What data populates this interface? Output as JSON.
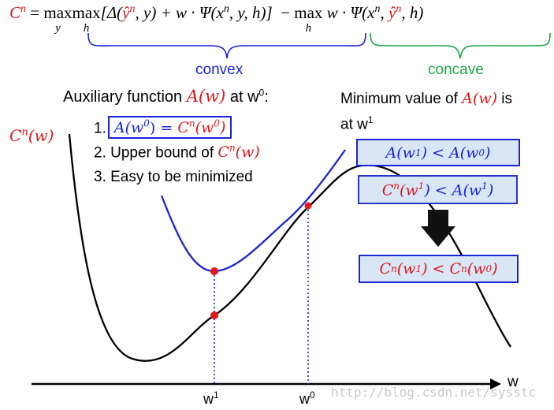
{
  "equation": {
    "lhs": "C",
    "lhs_sup": "n",
    "eq": "=",
    "max1": "max",
    "max1_sub": "y",
    "max2": "max",
    "max2_sub": "h",
    "term1": "[Δ(",
    "yhat": "ŷ",
    "yhat_sup": "n",
    "term1b": ", y) + w · Ψ(x",
    "x_sup": "n",
    "term1c": ", y, h)]",
    "minus": "−",
    "max3": "max",
    "max3_sub": "h",
    "term2": "w · Ψ(x",
    "x2_sup": "n",
    "comma": ",",
    "yhat2": "ŷ",
    "yhat2_sup": "n",
    "term2c": ", h)"
  },
  "labels": {
    "convex": "convex",
    "concave": "concave",
    "aux_title_pre": "Auxiliary function ",
    "aux_fn": "A(w)",
    "aux_title_post": " at w",
    "aux_title_sup": "0",
    "aux_title_colon": ":",
    "item1_num": "1.",
    "item1_lhs": "A(w",
    "item1_lhs_sup": "0",
    "item1_mid": ") = ",
    "item1_rhs": "C",
    "item1_rhs_sup": "n",
    "item1_rhs2": "(w",
    "item1_rhs2_sup": "0",
    "item1_close": ")",
    "item2_text": "2. Upper bound of ",
    "item2_fn": "C",
    "item2_fn_sup": "n",
    "item2_fn_rest": "(w)",
    "item3_text": "3. Easy to be minimized",
    "cnw": "C",
    "cnw_sup": "n",
    "cnw_rest": "(w)",
    "min_line1_pre": "Minimum value of ",
    "min_fn": "A(w)",
    "min_line1_post": " is",
    "min_line2": "at w",
    "min_line2_sup": "1",
    "w_axis": "w",
    "w1": "w",
    "w1_sup": "1",
    "w0": "w",
    "w0_sup": "0",
    "watermark": "http://blog.csdn.net/sysstc"
  },
  "boxes": {
    "box1": {
      "a": "A(w",
      "a_sup": "1",
      "mid": ") < A(w",
      "b_sup": "0",
      "end": ")"
    },
    "box2": {
      "c": "C",
      "c_sup": "n",
      "c2": "(w",
      "c2_sup": "1",
      "mid": ") < A(w",
      "b_sup": "1",
      "end": ")"
    },
    "box3": {
      "c": "C",
      "c_sup": "n",
      "c2": "(w",
      "c2_sup": "1",
      "mid": ") < C",
      "d_sup": "n",
      "d2": "(w",
      "d2_sup": "0",
      "end": ")"
    }
  },
  "colors": {
    "red": "#e0171b",
    "blue": "#1a24d6",
    "green": "#21a548",
    "box_fill": "#d9e6f6",
    "arrow": "#111111"
  }
}
